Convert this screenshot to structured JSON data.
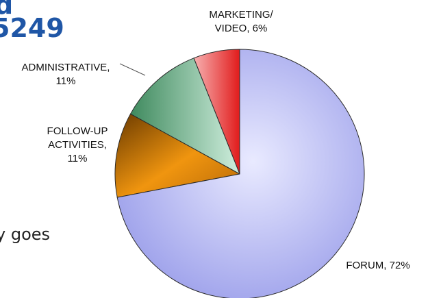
{
  "slide": {
    "title_fragment_1": "d",
    "title_fragment_2": "5249",
    "body_fragment": "y goes"
  },
  "colors": {
    "title": "#1f56a6",
    "forum": "#a9adf2",
    "follow_up": "#d07c10",
    "administrative": "#8ccaa8",
    "marketing": "#ee3b3b"
  },
  "chart_data": {
    "type": "pie",
    "slices": [
      {
        "label_lines": [
          "MARKETING/",
          "VIDEO, 6%"
        ],
        "value": 6
      },
      {
        "label_lines": [
          "ADMINISTRATIVE,",
          "11%"
        ],
        "value": 11
      },
      {
        "label_lines": [
          "FOLLOW-UP",
          "ACTIVITIES,",
          "11%"
        ],
        "value": 11
      },
      {
        "label_lines": [
          "FORUM, 72%"
        ],
        "value": 72
      }
    ]
  }
}
